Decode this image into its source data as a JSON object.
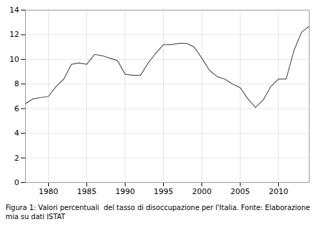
{
  "chart_data": {
    "type": "line",
    "caption": "Figura 1: Valori percentuali  del tasso di disoccupazione per l'Italia. Fonte: Elaborazione  mia su dati ISTAT",
    "x": [
      1977,
      1978,
      1979,
      1980,
      1981,
      1982,
      1983,
      1984,
      1985,
      1986,
      1987,
      1988,
      1989,
      1990,
      1991,
      1992,
      1993,
      1994,
      1995,
      1996,
      1997,
      1998,
      1999,
      2000,
      2001,
      2002,
      2003,
      2004,
      2005,
      2006,
      2007,
      2008,
      2009,
      2010,
      2011,
      2012,
      2013,
      2014
    ],
    "values": [
      6.4,
      6.8,
      6.9,
      7.0,
      7.8,
      8.4,
      9.6,
      9.7,
      9.6,
      10.4,
      10.3,
      10.1,
      9.9,
      8.8,
      8.7,
      8.7,
      9.7,
      10.5,
      11.2,
      11.2,
      11.3,
      11.3,
      11.0,
      10.1,
      9.1,
      8.6,
      8.4,
      8.0,
      7.7,
      6.8,
      6.1,
      6.7,
      7.8,
      8.4,
      8.4,
      10.7,
      12.2,
      12.7
    ],
    "color": "#555555",
    "xlim": [
      1977,
      2014
    ],
    "xticks": [
      1980,
      1985,
      1990,
      1995,
      2000,
      2005,
      2010
    ],
    "ylim": [
      0,
      14
    ],
    "yticks": [
      0,
      2,
      4,
      6,
      8,
      10,
      12,
      14
    ],
    "grid": true
  }
}
